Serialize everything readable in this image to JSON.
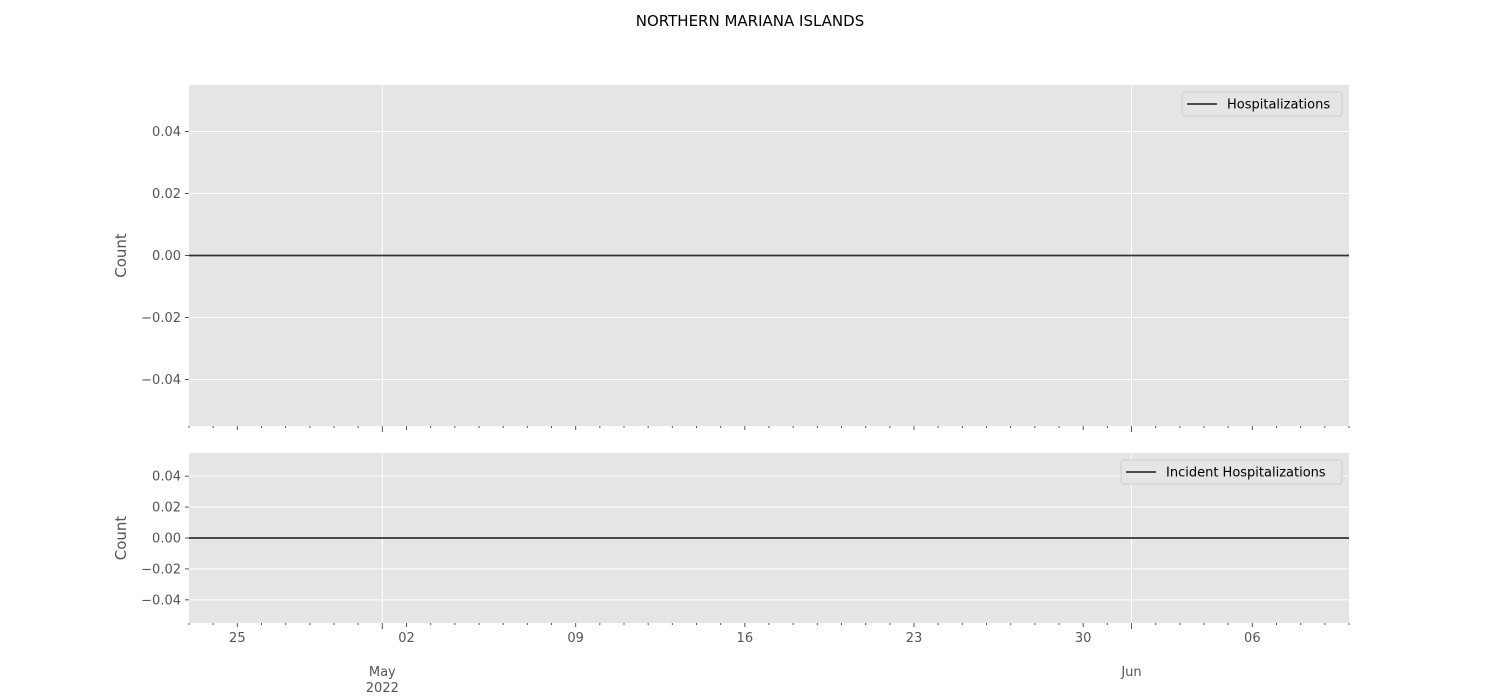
{
  "title": "NORTHERN MARIANA ISLANDS",
  "colors": {
    "panel_bg": "#E5E5E5",
    "grid": "#FFFFFF",
    "line": "#333333",
    "tick_text": "#555555",
    "legend_bg": "#E5E5E5",
    "legend_border": "#CCCCCC"
  },
  "chart_data": [
    {
      "type": "line",
      "ylabel": "Count",
      "ylim": [
        -0.055,
        0.055
      ],
      "yticks": [
        0.04,
        0.02,
        0.0,
        -0.02,
        -0.04
      ],
      "ytick_labels": [
        "0.04",
        "0.02",
        "0.00",
        "−0.02",
        "−0.04"
      ],
      "xlim": [
        "2022-04-23",
        "2022-06-10"
      ],
      "grid": true,
      "legend_position": "top-right",
      "series": [
        {
          "name": "Hospitalizations",
          "x": [
            "2022-04-23",
            "2022-06-10"
          ],
          "y": [
            0,
            0
          ]
        }
      ]
    },
    {
      "type": "line",
      "ylabel": "Count",
      "ylim": [
        -0.055,
        0.055
      ],
      "yticks": [
        0.04,
        0.02,
        0.0,
        -0.02,
        -0.04
      ],
      "ytick_labels": [
        "0.04",
        "0.02",
        "0.00",
        "−0.02",
        "−0.04"
      ],
      "xlim": [
        "2022-04-23",
        "2022-06-10"
      ],
      "grid": true,
      "legend_position": "top-right",
      "series": [
        {
          "name": "Incident Hospitalizations",
          "x": [
            "2022-04-23",
            "2022-06-10"
          ],
          "y": [
            0,
            0
          ]
        }
      ]
    }
  ],
  "x_axis": {
    "minor_ticks": [
      {
        "date": "2022-04-25",
        "label": "25"
      },
      {
        "date": "2022-05-02",
        "label": "02"
      },
      {
        "date": "2022-05-09",
        "label": "09"
      },
      {
        "date": "2022-05-16",
        "label": "16"
      },
      {
        "date": "2022-05-23",
        "label": "23"
      },
      {
        "date": "2022-05-30",
        "label": "30"
      },
      {
        "date": "2022-06-06",
        "label": "06"
      }
    ],
    "major_ticks": [
      {
        "date": "2022-05-01",
        "label": "May\n2022"
      },
      {
        "date": "2022-06-01",
        "label": "Jun"
      }
    ]
  }
}
